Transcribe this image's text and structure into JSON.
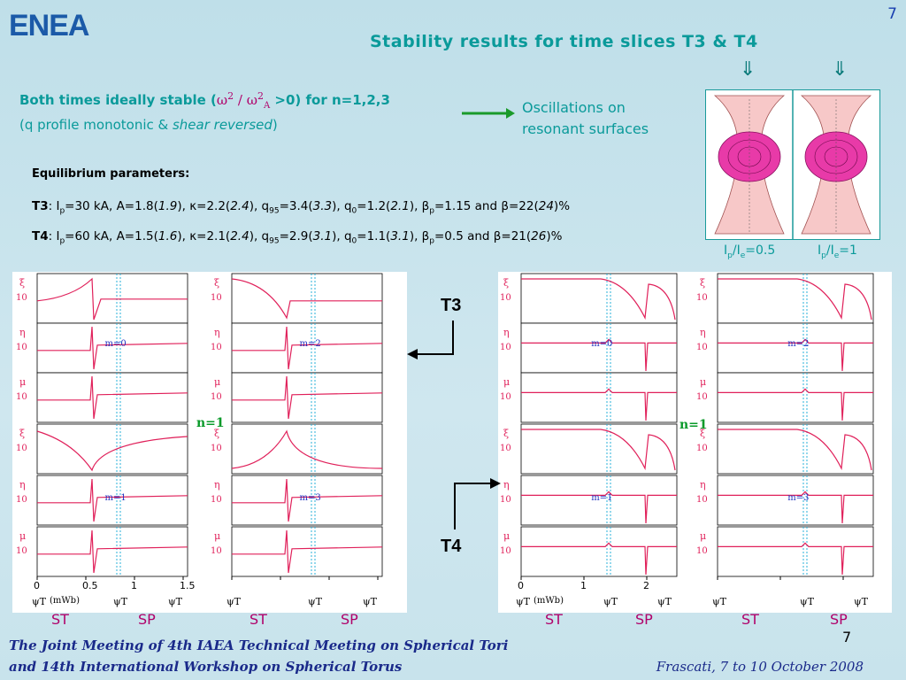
{
  "logo": {
    "text": "ENEA"
  },
  "page_number": "7",
  "title": "Stability results for time slices  T3  &  T4",
  "down_arrows": [
    "⇓",
    "⇓"
  ],
  "stability": {
    "prefix": "Both times ideally stable (",
    "omega": "ω",
    "sq": "2",
    "slash": " / ",
    "sub_a": "A",
    "suffix": " >0) for n=1,2,3",
    "line2_a": "(q profile monotonic & ",
    "line2_b": "shear reversed",
    "line2_c": ")"
  },
  "oscillations": {
    "line1": "Oscillations on",
    "line2": "resonant surfaces"
  },
  "equilibrium": {
    "heading": "Equilibrium parameters:",
    "t3": {
      "label": "T3",
      "text": ": I",
      "sub_p": "p",
      "rest1": "=30 kA, A=1.8(",
      "a_val": "1.9",
      "rest2": "), κ=2.2(",
      "k_val": "2.4",
      "rest3": "), q",
      "sub95": "95",
      "rest4": "=3.4(",
      "q95_val": "3.3",
      "rest5": "), q",
      "sub0": "0",
      "rest6": "=1.2(",
      "q0_val": "2.1",
      "rest7": "), β",
      "sub_bp": "p",
      "rest8": "=1.15 and β=22(",
      "b_val": "24",
      "rest9": ")%"
    },
    "t4": {
      "label": "T4",
      "text": ": I",
      "sub_p": "p",
      "rest1": "=60 kA, A=1.5(",
      "a_val": "1.6",
      "rest2": "), κ=2.1(",
      "k_val": "2.4",
      "rest3": "), q",
      "sub95": "95",
      "rest4": "=2.9(",
      "q95_val": "3.1",
      "rest5": "), q",
      "sub0": "0",
      "rest6": "=1.1(",
      "q0_val": "3.1",
      "rest7": "), β",
      "sub_bp": "p",
      "rest8": "=0.5 and β=21(",
      "b_val": "26",
      "rest9": ")%"
    }
  },
  "flux_labels": [
    {
      "pre": "I",
      "sub1": "p",
      "mid": "/I",
      "sub2": "e",
      "post": "=0.5"
    },
    {
      "pre": "I",
      "sub1": "p",
      "mid": "/I",
      "sub2": "e",
      "post": "=1"
    }
  ],
  "tags": {
    "t3": "T3",
    "t4": "T4",
    "n1_left": "n=1",
    "n1_right": "n=1"
  },
  "plots": {
    "mode_labels": [
      "m=0",
      "m=2",
      "m=1",
      "m=3"
    ],
    "xaxis": {
      "label": "ψ",
      "sub": "T",
      "unit": " (mWb)",
      "ticks_left": [
        "0",
        "0.5",
        "1",
        "1.5"
      ],
      "ticks_right": [
        "0",
        "1",
        "2"
      ],
      "x_label": "ψ",
      "x_sup": "X",
      "x_sub": "T",
      "max_label": "ψ",
      "max_sup": "max",
      "max_sub": "T"
    },
    "row_labels": [
      "ξ",
      "η",
      "μ"
    ],
    "exp_labels_left_top": [
      "10",
      "-5"
    ]
  },
  "st_sp": [
    "ST",
    "SP",
    "ST",
    "SP",
    "ST",
    "SP",
    "ST",
    "SP"
  ],
  "footer": {
    "line1": "The Joint Meeting of 4th IAEA Technical Meeting on Spherical Tori",
    "line2": "and 14th International Workshop on Spherical Torus",
    "right": "Frascati, 7 to 10 October 2008",
    "page": "7"
  },
  "colors": {
    "title": "#0a9a9a",
    "curve": "#e0205a",
    "dashed": "#2ab0d8",
    "arrow_green": "#1a9a2a",
    "plasma": "#e83aa8"
  }
}
